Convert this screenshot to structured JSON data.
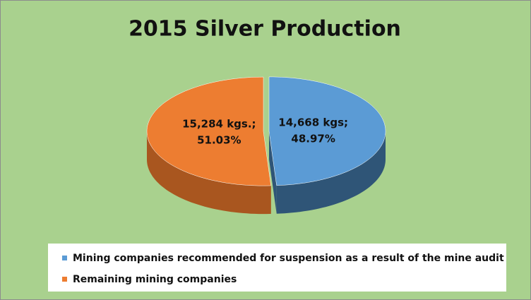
{
  "chart_data": {
    "type": "pie",
    "title": "2015 Silver Production",
    "categories": [
      "Mining companies recommended for suspension as a result of the mine audit",
      "Remaining mining companies"
    ],
    "values": [
      14668,
      15284
    ],
    "value_labels": [
      "14,668 kgs;",
      "15,284 kgs.;"
    ],
    "percents": [
      48.97,
      51.03
    ],
    "percent_labels": [
      "48.97%",
      "51.03%"
    ],
    "colors": [
      "#5b9bd5",
      "#ed7d31"
    ],
    "side_colors": [
      "#2f5577",
      "#a9561f"
    ]
  }
}
